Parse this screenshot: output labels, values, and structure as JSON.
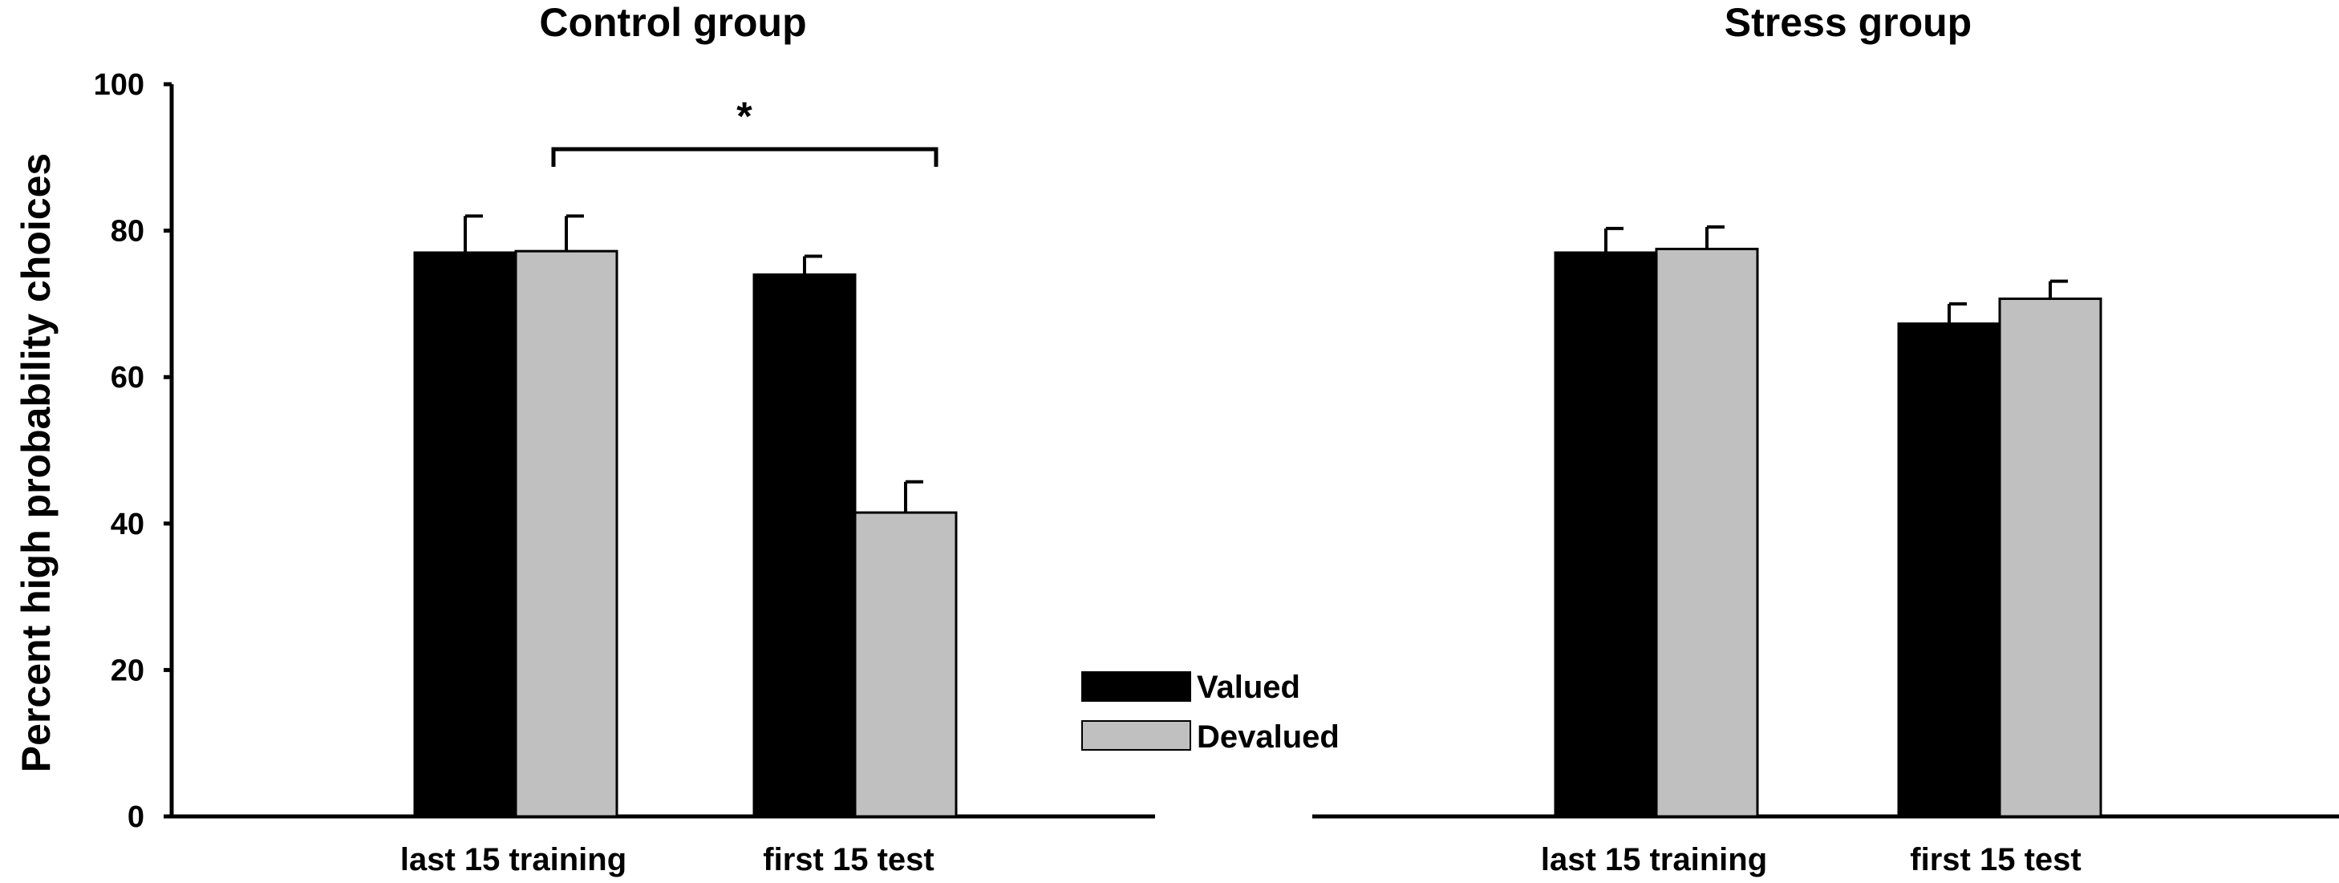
{
  "chart_data": [
    {
      "type": "bar",
      "title": "Control group",
      "ylabel": "Percent high probability choices",
      "ylim": [
        0,
        100
      ],
      "yticks": [
        "0",
        "20",
        "40",
        "60",
        "80",
        "100"
      ],
      "categories": [
        "last 15 training",
        "first 15 test"
      ],
      "series": [
        {
          "name": "Valued",
          "values": [
            77,
            74
          ],
          "errors": [
            5,
            2.5
          ],
          "color": "#000000"
        },
        {
          "name": "Devalued",
          "values": [
            77.2,
            41.5
          ],
          "errors": [
            4.8,
            4.2
          ],
          "color": "#c0c0c0"
        }
      ],
      "annotation": {
        "text": "*",
        "type": "significance-bracket"
      }
    },
    {
      "type": "bar",
      "title": "Stress group",
      "ylim": [
        0,
        100
      ],
      "categories": [
        "last 15 training",
        "first 15 test"
      ],
      "series": [
        {
          "name": "Valued",
          "values": [
            77,
            67.3
          ],
          "errors": [
            3.3,
            2.7
          ],
          "color": "#000000"
        },
        {
          "name": "Devalued",
          "values": [
            77.5,
            70.7
          ],
          "errors": [
            3,
            2.4
          ],
          "color": "#c0c0c0"
        }
      ]
    }
  ],
  "legend": {
    "items": [
      {
        "label": "Valued",
        "color": "#000000"
      },
      {
        "label": "Devalued",
        "color": "#c0c0c0"
      }
    ],
    "placement": "center"
  }
}
